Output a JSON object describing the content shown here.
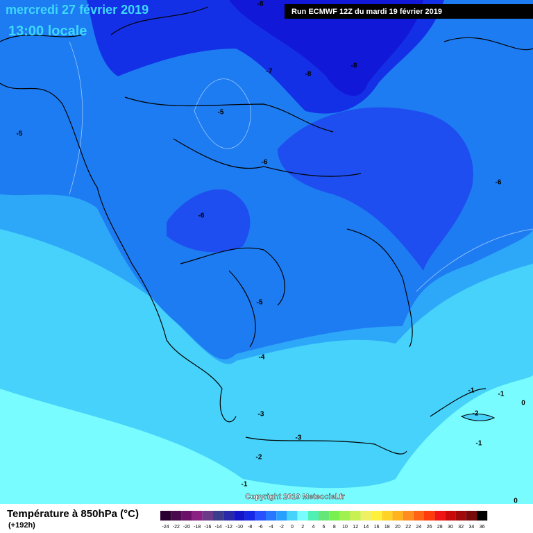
{
  "header": {
    "date": "mercredi 27 février 2019",
    "time": "13:00 locale",
    "run": "Run ECMWF 12Z du mardi 19 février 2019"
  },
  "map": {
    "contour_labels": [
      -8,
      -7,
      -8,
      -8,
      -5,
      -5,
      -6,
      -6,
      -6,
      -5,
      -4,
      -3,
      -3,
      -2,
      -1,
      -1,
      -1,
      0,
      -2,
      -1,
      0
    ],
    "copyright": "Copyright 2019 Meteociel.fr"
  },
  "legend": {
    "title": "Température à 850hPa (°C)",
    "lead": "(+192h)",
    "ticks": [
      -24,
      -22,
      -20,
      -18,
      -16,
      -14,
      -12,
      -10,
      -8,
      -6,
      -4,
      -2,
      0,
      2,
      4,
      6,
      8,
      10,
      12,
      14,
      16,
      18,
      20,
      22,
      24,
      26,
      28,
      30,
      32,
      34,
      36
    ],
    "colors": [
      "#2a0030",
      "#4a0a4e",
      "#6a1068",
      "#8a2082",
      "#6a3a88",
      "#3c3c8c",
      "#2a2aa8",
      "#1414c8",
      "#1428e6",
      "#2850ff",
      "#2878ff",
      "#28a0ff",
      "#46d2fa",
      "#78fcff",
      "#50f0b4",
      "#64e678",
      "#78f050",
      "#a0f050",
      "#c8f050",
      "#f0f064",
      "#fff03c",
      "#ffd228",
      "#ffb41e",
      "#ff8c1e",
      "#ff6414",
      "#ff3c0a",
      "#f01414",
      "#c80a0a",
      "#a00a0a",
      "#780a0a",
      "#000000"
    ]
  }
}
